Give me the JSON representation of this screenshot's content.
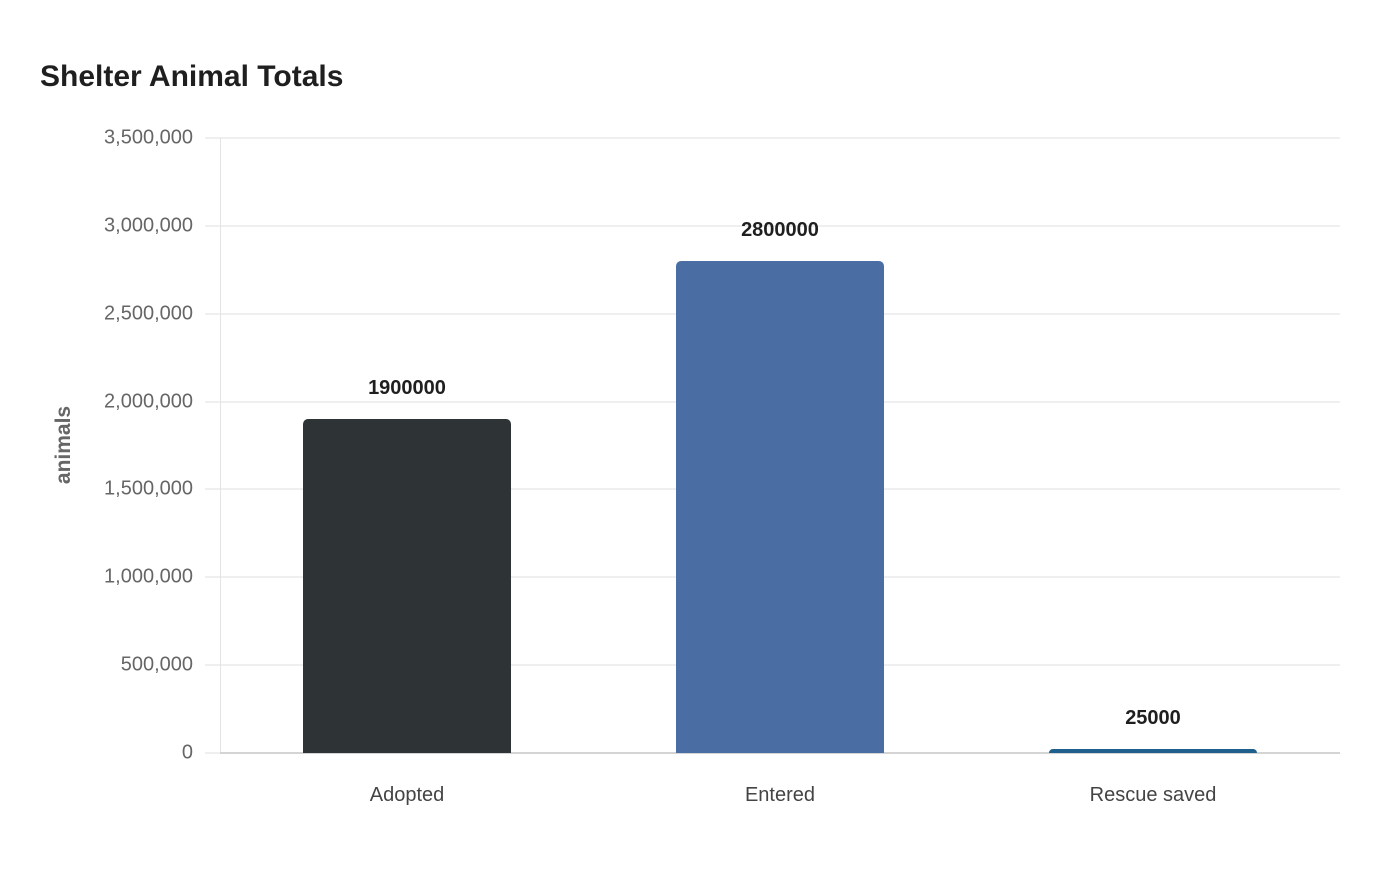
{
  "chart_data": {
    "type": "bar",
    "title": "Shelter Animal Totals",
    "xlabel": "",
    "ylabel": "animals",
    "categories": [
      "Adopted",
      "Entered",
      "Rescue saved"
    ],
    "values": [
      1900000,
      2800000,
      25000
    ],
    "data_labels": [
      "1900000",
      "2800000",
      "25000"
    ],
    "colors": [
      "#2e3436",
      "#4a6ea3",
      "#1f5f8b"
    ],
    "ylim": [
      0,
      3500000
    ],
    "yticks": [
      0,
      500000,
      1000000,
      1500000,
      2000000,
      2500000,
      3000000,
      3500000
    ],
    "ytick_labels": [
      "0",
      "500,000",
      "1,000,000",
      "1,500,000",
      "2,000,000",
      "2,500,000",
      "3,000,000",
      "3,500,000"
    ],
    "grid": true,
    "legend": null
  }
}
